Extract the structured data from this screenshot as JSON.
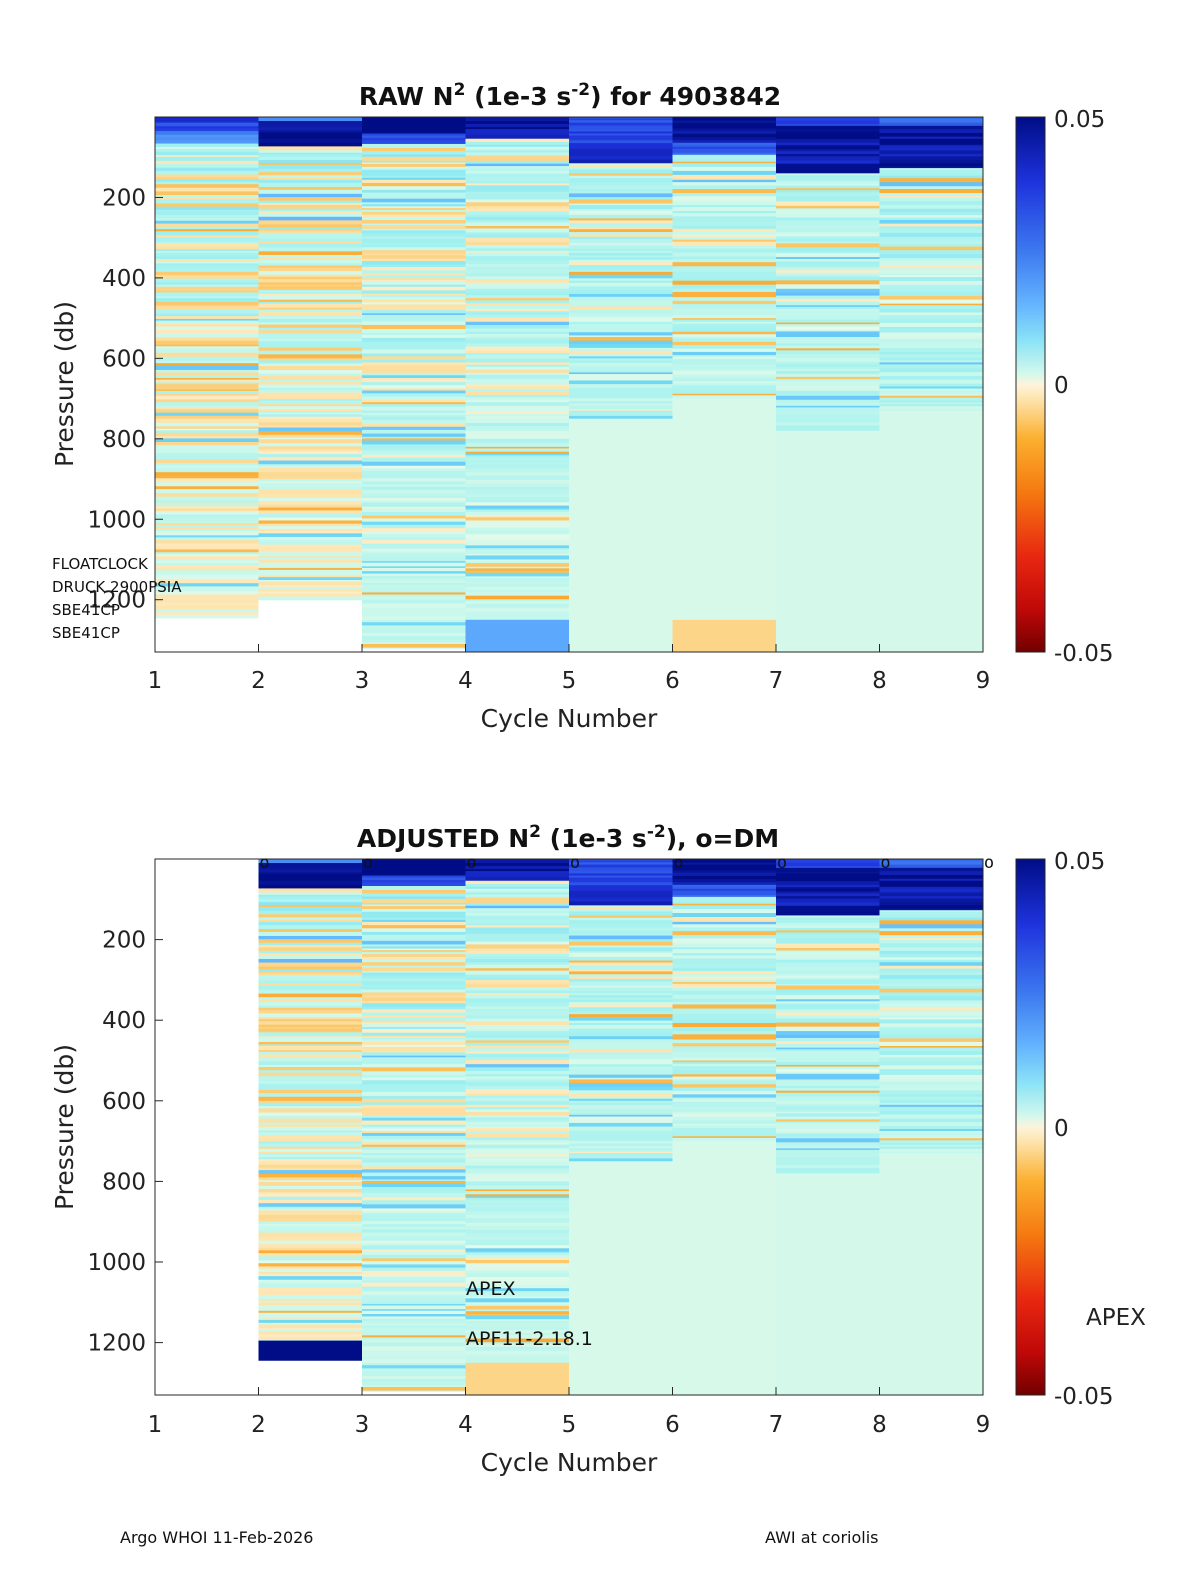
{
  "footer": {
    "left": "Argo WHOI 11-Feb-2026",
    "right": "AWI at coriolis"
  },
  "colors": {
    "axis": "#262626",
    "missing": "#ffffff",
    "colormap_pos": [
      "#e8fae8",
      "#c8f8ec",
      "#a0f0f0",
      "#6fd8f4",
      "#64b4ff",
      "#3c78f0",
      "#1e32dc",
      "#000d86"
    ],
    "colormap_neg": [
      "#fdf0d0",
      "#fde2a8",
      "#fbc15a",
      "#f99a16",
      "#f06a0a",
      "#e82810",
      "#b80808",
      "#720000"
    ]
  },
  "chart_data": [
    {
      "type": "heatmap",
      "title_main": "RAW N",
      "title_sup": "2",
      "title_mid": " (1e-3 s",
      "title_sup2": "-2",
      "title_end": ") for 4903842",
      "xlabel": "Cycle Number",
      "ylabel": "Pressure (db)",
      "xticks": [
        "1",
        "2",
        "3",
        "4",
        "5",
        "6",
        "7",
        "8",
        "9"
      ],
      "yticks": [
        "200",
        "400",
        "600",
        "800",
        "1000",
        "1200"
      ],
      "xlim": [
        1,
        9
      ],
      "ylim": [
        0,
        1330
      ],
      "clim": [
        -0.05,
        0.05
      ],
      "colorbar_ticks": [
        "0.05",
        "0",
        "-0.05"
      ],
      "annotations": [
        "FLOATCLOCK",
        "DRUCK 2900PSIA",
        "SBE41CP",
        "SBE41CP"
      ],
      "columns": [
        {
          "cycle": 1,
          "max_pres": 1245,
          "base": 0.0,
          "deep_block": null,
          "surface": [
            {
              "to": 12,
              "v": 0.042
            },
            {
              "to": 30,
              "v": 0.033
            },
            {
              "to": 60,
              "v": 0.022
            }
          ],
          "seed": 11,
          "noise": 1.0
        },
        {
          "cycle": 2,
          "max_pres": 1200,
          "base": 0.0,
          "deep_block": null,
          "surface": [
            {
              "to": 8,
              "v": 0.02
            },
            {
              "to": 40,
              "v": 0.044
            },
            {
              "to": 70,
              "v": 0.05
            }
          ],
          "seed": 23,
          "noise": 1.0
        },
        {
          "cycle": 3,
          "max_pres": 1320,
          "base": 0.001,
          "deep_block": null,
          "surface": [
            {
              "to": 35,
              "v": 0.05
            },
            {
              "to": 60,
              "v": 0.03
            }
          ],
          "seed": 37,
          "noise": 0.9
        },
        {
          "cycle": 4,
          "max_pres": 1250,
          "base": 0.001,
          "deep_block": {
            "from": 1250,
            "to": 1330,
            "v": 0.018
          },
          "surface": [
            {
              "to": 20,
              "v": 0.05
            },
            {
              "to": 50,
              "v": 0.045
            }
          ],
          "seed": 41,
          "noise": 0.8
        },
        {
          "cycle": 5,
          "max_pres": 750,
          "base": 0.0012,
          "deep_block": {
            "from": 750,
            "to": 1330,
            "v": 0.0003
          },
          "surface": [
            {
              "to": 10,
              "v": 0.03
            },
            {
              "to": 60,
              "v": 0.035
            },
            {
              "to": 110,
              "v": 0.04
            }
          ],
          "seed": 53,
          "noise": 0.6
        },
        {
          "cycle": 6,
          "max_pres": 700,
          "base": 0.0015,
          "deep_block": {
            "from": 700,
            "to": 1250,
            "v": 0.0003
          },
          "surface": [
            {
              "to": 60,
              "v": 0.05
            },
            {
              "to": 90,
              "v": 0.03
            }
          ],
          "seed": 67,
          "noise": 0.5,
          "deep_block2": {
            "from": 1250,
            "to": 1330,
            "v": -0.002
          }
        },
        {
          "cycle": 7,
          "max_pres": 780,
          "base": 0.0015,
          "deep_block": {
            "from": 780,
            "to": 1330,
            "v": 0.0004
          },
          "surface": [
            {
              "to": 20,
              "v": 0.035
            },
            {
              "to": 60,
              "v": 0.05
            },
            {
              "to": 140,
              "v": 0.045
            }
          ],
          "seed": 79,
          "noise": 0.5
        },
        {
          "cycle": 8,
          "max_pres": 730,
          "base": 0.002,
          "deep_block": {
            "from": 730,
            "to": 1330,
            "v": 0.0004
          },
          "surface": [
            {
              "to": 15,
              "v": 0.03
            },
            {
              "to": 60,
              "v": 0.048
            },
            {
              "to": 125,
              "v": 0.046
            }
          ],
          "seed": 89,
          "noise": 0.6
        }
      ]
    },
    {
      "type": "heatmap",
      "title_main": "ADJUSTED N",
      "title_sup": "2",
      "title_mid": " (1e-3 s",
      "title_sup2": "-2",
      "title_end": "), o=DM",
      "xlabel": "Cycle Number",
      "ylabel": "Pressure (db)",
      "xticks": [
        "1",
        "2",
        "3",
        "4",
        "5",
        "6",
        "7",
        "8",
        "9"
      ],
      "yticks": [
        "200",
        "400",
        "600",
        "800",
        "1000",
        "1200"
      ],
      "xlim": [
        1,
        9
      ],
      "ylim": [
        0,
        1330
      ],
      "clim": [
        -0.05,
        0.05
      ],
      "colorbar_ticks": [
        "0.05",
        "0",
        "-0.05"
      ],
      "colorbar_label": "APEX",
      "dm_markers": [
        2,
        3,
        4,
        5,
        6,
        7,
        8,
        9
      ],
      "dm_marker_symbol": "o",
      "annotations": [
        "APEX",
        "APF11-2.18.1"
      ],
      "columns": [
        {
          "cycle": 1,
          "max_pres": 0,
          "base": 0,
          "deep_block": null,
          "surface": [],
          "seed": 1,
          "noise": 0
        },
        {
          "cycle": 2,
          "max_pres": 1195,
          "base": 0.0,
          "deep_block": {
            "from": 1195,
            "to": 1245,
            "v": 0.05
          },
          "surface": [
            {
              "to": 10,
              "v": 0.02
            },
            {
              "to": 40,
              "v": 0.046
            },
            {
              "to": 72,
              "v": 0.05
            }
          ],
          "seed": 23,
          "noise": 1.0
        },
        {
          "cycle": 3,
          "max_pres": 1320,
          "base": 0.001,
          "deep_block": null,
          "surface": [
            {
              "to": 35,
              "v": 0.05
            },
            {
              "to": 60,
              "v": 0.03
            }
          ],
          "seed": 37,
          "noise": 0.9
        },
        {
          "cycle": 4,
          "max_pres": 1250,
          "base": 0.001,
          "deep_block": {
            "from": 1250,
            "to": 1330,
            "v": -0.002
          },
          "surface": [
            {
              "to": 20,
              "v": 0.05
            },
            {
              "to": 50,
              "v": 0.045
            }
          ],
          "seed": 41,
          "noise": 0.8
        },
        {
          "cycle": 5,
          "max_pres": 750,
          "base": 0.0012,
          "deep_block": {
            "from": 750,
            "to": 1330,
            "v": 0.0003
          },
          "surface": [
            {
              "to": 10,
              "v": 0.03
            },
            {
              "to": 60,
              "v": 0.035
            },
            {
              "to": 110,
              "v": 0.04
            }
          ],
          "seed": 53,
          "noise": 0.6
        },
        {
          "cycle": 6,
          "max_pres": 700,
          "base": 0.0015,
          "deep_block": {
            "from": 700,
            "to": 1330,
            "v": 0.0003
          },
          "surface": [
            {
              "to": 60,
              "v": 0.05
            },
            {
              "to": 90,
              "v": 0.03
            }
          ],
          "seed": 67,
          "noise": 0.5
        },
        {
          "cycle": 7,
          "max_pres": 780,
          "base": 0.0015,
          "deep_block": {
            "from": 780,
            "to": 1330,
            "v": 0.0004
          },
          "surface": [
            {
              "to": 20,
              "v": 0.035
            },
            {
              "to": 60,
              "v": 0.05
            },
            {
              "to": 140,
              "v": 0.045
            }
          ],
          "seed": 79,
          "noise": 0.5
        },
        {
          "cycle": 8,
          "max_pres": 730,
          "base": 0.002,
          "deep_block": {
            "from": 730,
            "to": 1330,
            "v": 0.0004
          },
          "surface": [
            {
              "to": 15,
              "v": 0.03
            },
            {
              "to": 60,
              "v": 0.048
            },
            {
              "to": 125,
              "v": 0.046
            }
          ],
          "seed": 89,
          "noise": 0.6
        }
      ]
    }
  ]
}
